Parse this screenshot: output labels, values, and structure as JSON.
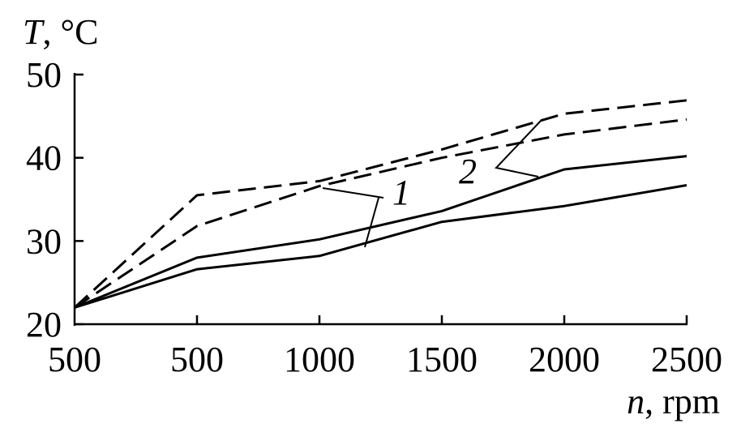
{
  "chart_data": {
    "type": "line",
    "ylabel_symbol": "T",
    "ylabel_unit": ", °C",
    "xlabel_symbol": "n",
    "xlabel_unit": ", rpm",
    "x_tick_labels": [
      "500",
      "500",
      "1000",
      "1500",
      "2000",
      "2500"
    ],
    "y_ticks": [
      20,
      30,
      40,
      50
    ],
    "ylim": [
      20,
      50
    ],
    "curve_labels": [
      "1",
      "2"
    ],
    "series": [
      {
        "group": "1",
        "style": "solid",
        "values": [
          22,
          28,
          30.2,
          33.6,
          38.6,
          40.2
        ]
      },
      {
        "group": "1",
        "style": "solid",
        "values": [
          22,
          26.6,
          28.2,
          32.3,
          34.2,
          36.7
        ]
      },
      {
        "group": "2",
        "style": "dashed",
        "values": [
          22,
          35.5,
          37.2,
          41,
          45.3,
          46.9
        ]
      },
      {
        "group": "2",
        "style": "dashed",
        "values": [
          22,
          31.8,
          36.6,
          40,
          42.8,
          44.6
        ]
      }
    ],
    "grid": false,
    "legend": "none"
  }
}
